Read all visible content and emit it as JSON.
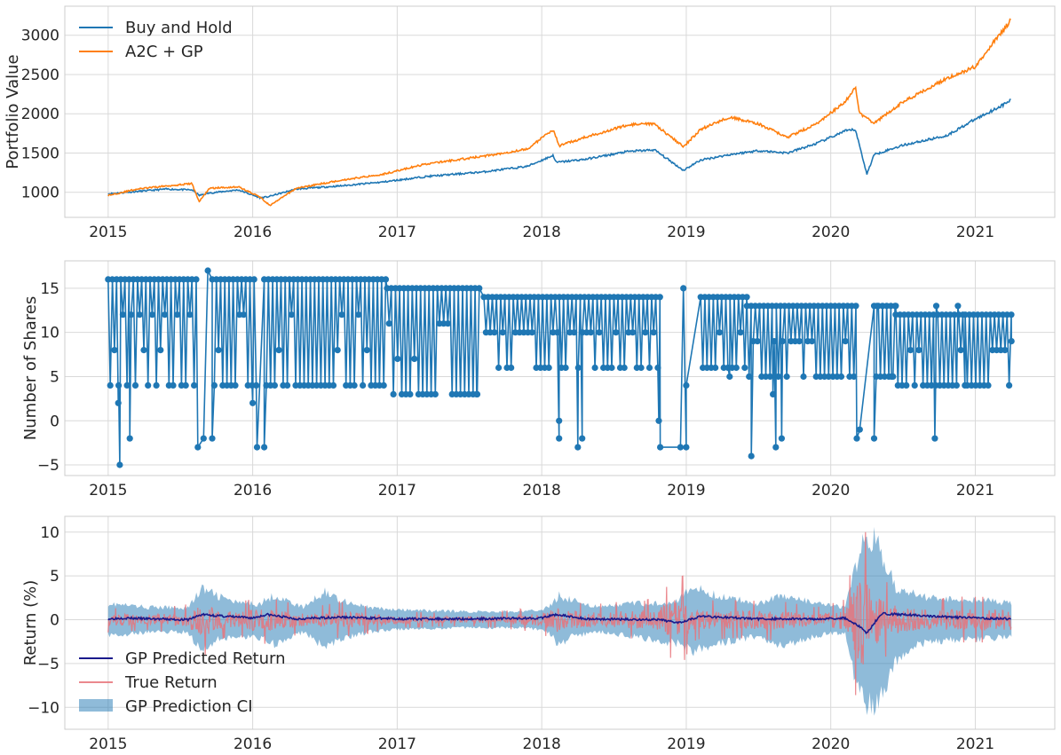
{
  "chart_data": [
    {
      "type": "line",
      "ylabel": "Portfolio Value",
      "xlim": [
        2014.7,
        2021.55
      ],
      "ylim": [
        680,
        3370
      ],
      "xticks": [
        2015,
        2016,
        2017,
        2018,
        2019,
        2020,
        2021
      ],
      "xtick_labels": [
        "2015",
        "2016",
        "2017",
        "2018",
        "2019",
        "2020",
        "2021"
      ],
      "yticks": [
        1000,
        1500,
        2000,
        2500,
        3000
      ],
      "ytick_labels": [
        "1000",
        "1500",
        "2000",
        "2500",
        "3000"
      ],
      "grid": true,
      "legend": "upper left",
      "series": [
        {
          "name": "Buy and Hold",
          "color": "#1f77b4",
          "x": [
            2015.0,
            2015.2,
            2015.4,
            2015.58,
            2015.63,
            2015.7,
            2015.9,
            2016.05,
            2016.1,
            2016.3,
            2016.6,
            2016.9,
            2017.2,
            2017.6,
            2017.9,
            2018.08,
            2018.1,
            2018.3,
            2018.6,
            2018.78,
            2018.98,
            2019.1,
            2019.3,
            2019.5,
            2019.7,
            2019.9,
            2020.1,
            2020.17,
            2020.25,
            2020.3,
            2020.5,
            2020.8,
            2021.0,
            2021.2,
            2021.25
          ],
          "y": [
            980,
            1010,
            1040,
            1030,
            960,
            990,
            1030,
            930,
            940,
            1040,
            1080,
            1130,
            1200,
            1260,
            1330,
            1470,
            1380,
            1420,
            1520,
            1540,
            1280,
            1410,
            1480,
            1530,
            1500,
            1620,
            1780,
            1800,
            1230,
            1480,
            1600,
            1720,
            1930,
            2120,
            2180
          ]
        },
        {
          "name": "A2C + GP",
          "color": "#ff7f0e",
          "x": [
            2015.0,
            2015.2,
            2015.4,
            2015.58,
            2015.63,
            2015.7,
            2015.9,
            2016.05,
            2016.12,
            2016.3,
            2016.6,
            2016.9,
            2017.2,
            2017.6,
            2017.9,
            2018.08,
            2018.12,
            2018.3,
            2018.6,
            2018.78,
            2018.98,
            2019.1,
            2019.3,
            2019.5,
            2019.7,
            2019.9,
            2020.1,
            2020.17,
            2020.2,
            2020.3,
            2020.5,
            2020.8,
            2021.0,
            2021.1,
            2021.25
          ],
          "y": [
            960,
            1040,
            1080,
            1110,
            880,
            1050,
            1070,
            940,
            830,
            1050,
            1150,
            1230,
            1360,
            1460,
            1550,
            1800,
            1590,
            1700,
            1860,
            1870,
            1580,
            1800,
            1960,
            1870,
            1700,
            1870,
            2150,
            2350,
            2000,
            1880,
            2150,
            2450,
            2600,
            2850,
            3200
          ]
        }
      ]
    },
    {
      "type": "line",
      "ylabel": "Number of Shares",
      "xlim": [
        2014.7,
        2021.55
      ],
      "ylim": [
        -6.2,
        18.1
      ],
      "xticks": [
        2015,
        2016,
        2017,
        2018,
        2019,
        2020,
        2021
      ],
      "xtick_labels": [
        "2015",
        "2016",
        "2017",
        "2018",
        "2019",
        "2020",
        "2021"
      ],
      "yticks": [
        -5,
        0,
        5,
        10,
        15
      ],
      "ytick_labels": [
        "−5",
        "0",
        "5",
        "10",
        "15"
      ],
      "grid": true,
      "series": [
        {
          "color": "#1f77b4",
          "marker": "o",
          "regimes": [
            {
              "start": 2015.0,
              "end": 2015.62,
              "high": 16,
              "low": 4,
              "mid": [
                8,
                12
              ]
            },
            {
              "start": 2015.72,
              "end": 2016.03,
              "high": 16,
              "low": 4,
              "mid": [
                8,
                12
              ]
            },
            {
              "start": 2016.08,
              "end": 2016.93,
              "high": 16,
              "low": 4,
              "mid": [
                8,
                12
              ]
            },
            {
              "start": 2016.93,
              "end": 2017.57,
              "high": 15,
              "low": 3,
              "mid": [
                7,
                11
              ]
            },
            {
              "start": 2017.6,
              "end": 2018.82,
              "high": 14,
              "low": 6,
              "mid": [
                10
              ]
            },
            {
              "start": 2019.1,
              "end": 2019.42,
              "high": 14,
              "low": 6,
              "mid": [
                10
              ]
            },
            {
              "start": 2019.42,
              "end": 2020.18,
              "high": 13,
              "low": 5,
              "mid": [
                9
              ]
            },
            {
              "start": 2020.3,
              "end": 2020.45,
              "high": 13,
              "low": 5,
              "mid": []
            },
            {
              "start": 2020.45,
              "end": 2020.93,
              "high": 12,
              "low": 4,
              "mid": [
                8
              ]
            },
            {
              "start": 2020.93,
              "end": 2021.25,
              "high": 12,
              "low": 4,
              "mid": [
                8
              ]
            }
          ],
          "dips": [
            {
              "x": 2015.08,
              "y": -5
            },
            {
              "x": 2015.07,
              "y": 2
            },
            {
              "x": 2015.15,
              "y": -2
            },
            {
              "x": 2015.62,
              "y": -3
            },
            {
              "x": 2015.66,
              "y": -2
            },
            {
              "x": 2015.72,
              "y": -2
            },
            {
              "x": 2015.69,
              "y": 17
            },
            {
              "x": 2016.03,
              "y": -3
            },
            {
              "x": 2016.08,
              "y": -3
            },
            {
              "x": 2016.0,
              "y": 2
            },
            {
              "x": 2017.55,
              "y": 3
            },
            {
              "x": 2018.12,
              "y": -2
            },
            {
              "x": 2018.12,
              "y": 0
            },
            {
              "x": 2018.25,
              "y": -3
            },
            {
              "x": 2018.28,
              "y": -2
            },
            {
              "x": 2018.82,
              "y": -3
            },
            {
              "x": 2018.81,
              "y": 0
            },
            {
              "x": 2018.96,
              "y": -3
            },
            {
              "x": 2019.0,
              "y": -3
            },
            {
              "x": 2018.98,
              "y": 15
            },
            {
              "x": 2019.0,
              "y": 4
            },
            {
              "x": 2019.45,
              "y": -4
            },
            {
              "x": 2019.3,
              "y": 5
            },
            {
              "x": 2019.6,
              "y": 3
            },
            {
              "x": 2019.62,
              "y": -3
            },
            {
              "x": 2019.66,
              "y": -2
            },
            {
              "x": 2020.2,
              "y": -1
            },
            {
              "x": 2020.18,
              "y": -2
            },
            {
              "x": 2020.3,
              "y": -2
            },
            {
              "x": 2020.72,
              "y": -2
            },
            {
              "x": 2020.73,
              "y": 13
            },
            {
              "x": 2020.88,
              "y": 13
            },
            {
              "x": 2020.45,
              "y": 13
            },
            {
              "x": 2020.32,
              "y": 13
            },
            {
              "x": 2020.42,
              "y": 5
            },
            {
              "x": 2021.25,
              "y": 9
            }
          ]
        }
      ]
    },
    {
      "type": "area",
      "ylabel": "Return (%)",
      "xlim": [
        2014.7,
        2021.55
      ],
      "ylim": [
        -12.5,
        11.8
      ],
      "xticks": [
        2015,
        2016,
        2017,
        2018,
        2019,
        2020,
        2021
      ],
      "xtick_labels": [
        "2015",
        "2016",
        "2017",
        "2018",
        "2019",
        "2020",
        "2021"
      ],
      "yticks": [
        -10,
        -5,
        0,
        5,
        10
      ],
      "ytick_labels": [
        "−10",
        "−5",
        "0",
        "5",
        "10"
      ],
      "grid": true,
      "legend": "lower left",
      "series": [
        {
          "name": "GP Predicted Return",
          "color": "#1a1a8c",
          "x": [
            2015.0,
            2015.1,
            2015.3,
            2015.55,
            2015.65,
            2015.8,
            2016.0,
            2016.1,
            2016.3,
            2016.6,
            2017.0,
            2017.5,
            2018.0,
            2018.1,
            2018.3,
            2018.8,
            2018.95,
            2019.1,
            2019.5,
            2019.9,
            2020.1,
            2020.2,
            2020.25,
            2020.35,
            2020.5,
            2020.8,
            2021.0,
            2021.25
          ],
          "y": [
            0.1,
            0.2,
            0.1,
            0.0,
            0.6,
            0.4,
            0.2,
            0.6,
            0.1,
            0.3,
            0.1,
            0.1,
            0.2,
            0.6,
            0.1,
            0.0,
            -0.3,
            0.4,
            0.1,
            0.1,
            0.2,
            -0.8,
            -1.5,
            0.7,
            0.6,
            0.3,
            0.2,
            0.1
          ]
        },
        {
          "name": "True Return",
          "color": "#e8737a",
          "envelope_x": [
            2015.0,
            2015.3,
            2015.55,
            2015.65,
            2015.75,
            2015.9,
            2016.05,
            2016.15,
            2016.4,
            2016.6,
            2017.0,
            2017.5,
            2018.0,
            2018.1,
            2018.3,
            2018.8,
            2018.95,
            2019.05,
            2019.3,
            2019.6,
            2019.9,
            2020.1,
            2020.18,
            2020.22,
            2020.28,
            2020.35,
            2020.5,
            2020.7,
            2020.9,
            2021.25
          ],
          "envelope": [
            1.2,
            1.0,
            1.5,
            3.8,
            2.0,
            1.5,
            2.5,
            2.0,
            1.2,
            1.8,
            0.8,
            0.6,
            1.2,
            2.5,
            1.5,
            2.0,
            5.0,
            2.0,
            1.8,
            2.0,
            1.2,
            2.0,
            8.0,
            9.5,
            6.0,
            4.0,
            2.5,
            2.0,
            2.2,
            2.2
          ]
        },
        {
          "name": "GP Prediction CI",
          "color": "#1f77b4",
          "band_x": [
            2015.0,
            2015.1,
            2015.3,
            2015.55,
            2015.65,
            2015.75,
            2015.9,
            2016.05,
            2016.15,
            2016.35,
            2016.5,
            2016.6,
            2016.8,
            2017.0,
            2017.5,
            2017.9,
            2018.05,
            2018.12,
            2018.2,
            2018.4,
            2018.6,
            2018.8,
            2018.95,
            2019.05,
            2019.2,
            2019.5,
            2019.65,
            2019.9,
            2020.1,
            2020.15,
            2020.22,
            2020.3,
            2020.35,
            2020.45,
            2020.6,
            2020.8,
            2021.0,
            2021.25
          ],
          "upper": [
            2.0,
            1.8,
            1.5,
            1.5,
            3.8,
            3.0,
            2.0,
            2.0,
            3.0,
            1.5,
            3.5,
            2.5,
            1.5,
            1.2,
            1.0,
            1.0,
            1.5,
            3.0,
            2.5,
            1.5,
            2.0,
            2.0,
            2.5,
            4.0,
            3.0,
            2.0,
            3.0,
            2.0,
            1.5,
            5.0,
            9.0,
            10.5,
            8.0,
            4.0,
            3.0,
            2.5,
            2.5,
            2.0
          ],
          "lower": [
            -2.0,
            -1.8,
            -1.5,
            -1.5,
            -4.0,
            -2.5,
            -2.0,
            -2.2,
            -3.0,
            -1.5,
            -3.5,
            -2.5,
            -1.5,
            -1.2,
            -1.0,
            -1.0,
            -1.5,
            -3.2,
            -2.0,
            -1.5,
            -2.0,
            -2.5,
            -3.0,
            -4.0,
            -3.0,
            -2.0,
            -3.2,
            -2.0,
            -1.5,
            -6.0,
            -9.0,
            -11.5,
            -9.0,
            -5.0,
            -3.0,
            -2.5,
            -2.5,
            -2.0
          ]
        }
      ]
    }
  ]
}
